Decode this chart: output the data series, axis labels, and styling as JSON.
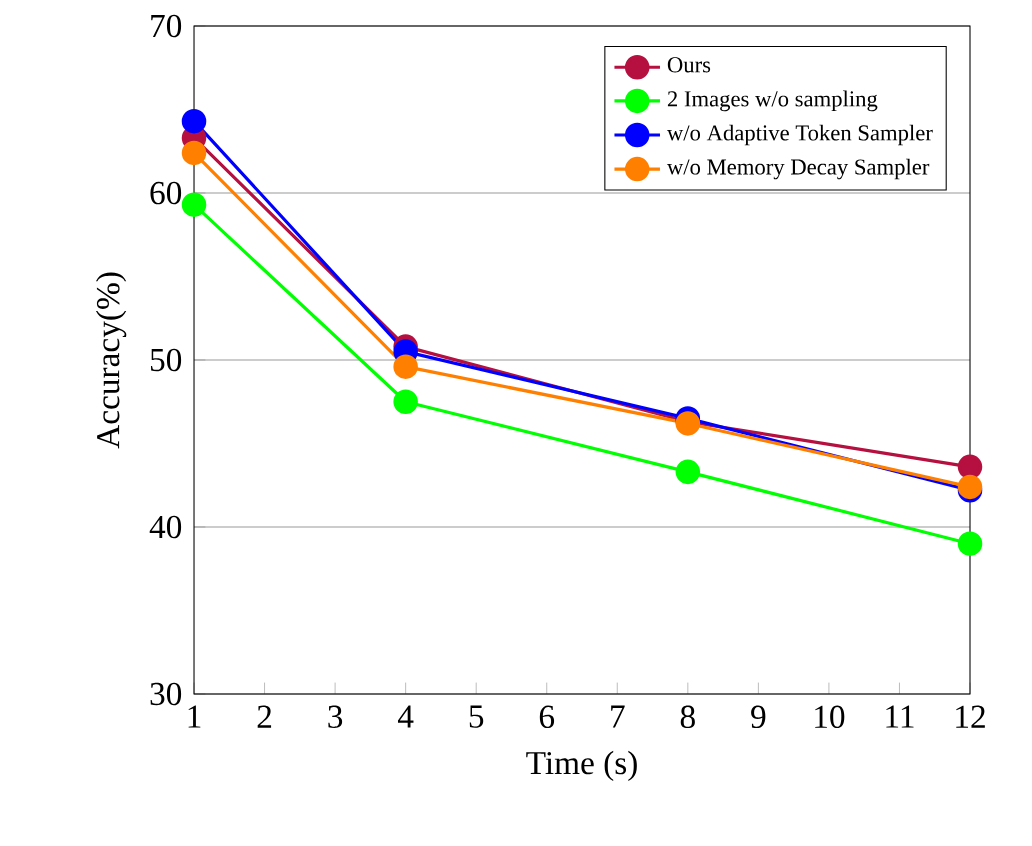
{
  "chart_data": {
    "type": "line",
    "xlabel": "Time (s)",
    "ylabel": "Accuracy(%)",
    "x": [
      1,
      4,
      8,
      12
    ],
    "series": [
      {
        "name": "Ours",
        "color": "#b5103f",
        "values": [
          63.3,
          50.8,
          46.3,
          43.6
        ]
      },
      {
        "name": "2 Images w/o sampling",
        "color": "#00ff00",
        "values": [
          59.3,
          47.5,
          43.3,
          39.0
        ]
      },
      {
        "name": "w/o Adaptive Token Sampler",
        "color": "#0000ff",
        "values": [
          64.3,
          50.5,
          46.5,
          42.2
        ]
      },
      {
        "name": "w/o Memory Decay Sampler",
        "color": "#ff8000",
        "values": [
          62.4,
          49.6,
          46.2,
          42.4
        ]
      }
    ],
    "xlim": [
      1,
      12
    ],
    "ylim": [
      30,
      70
    ],
    "xticks": [
      1,
      2,
      3,
      4,
      5,
      6,
      7,
      8,
      9,
      10,
      11,
      12
    ],
    "yticks": [
      30,
      40,
      50,
      60,
      70
    ],
    "grid": "y",
    "legend": "top right",
    "marker": "circle",
    "line_style": "solid"
  }
}
